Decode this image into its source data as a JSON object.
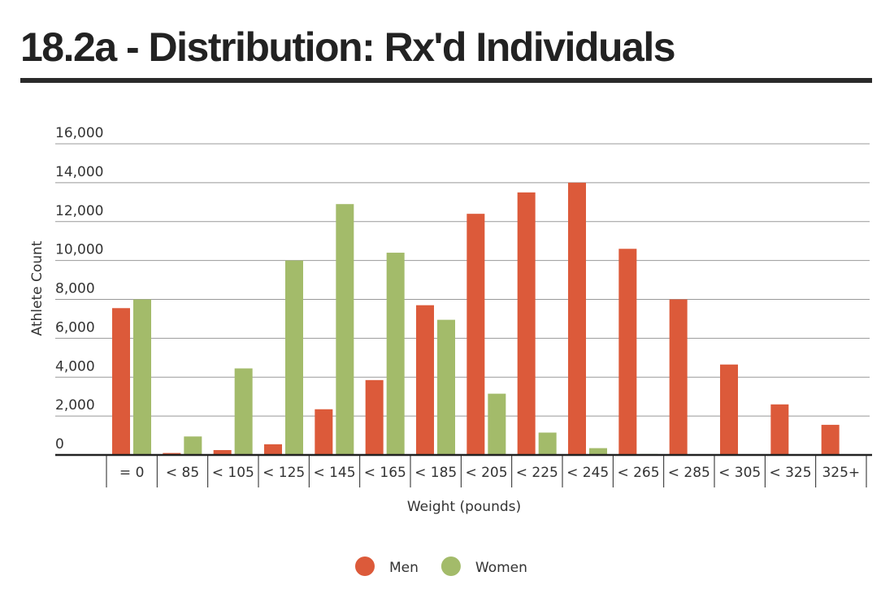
{
  "chart_data": {
    "type": "bar",
    "title": "18.2a - Distribution: Rx'd Individuals",
    "x_label": "Weight (pounds)",
    "y_label": "Athlete Count",
    "categories": [
      "= 0",
      "< 85",
      "< 105",
      "< 125",
      "< 145",
      "< 165",
      "< 185",
      "< 205",
      "< 225",
      "< 245",
      "< 265",
      "< 285",
      "< 305",
      "< 325",
      "325+"
    ],
    "series": [
      {
        "name": "Men",
        "color": "#dc5a3a",
        "values": [
          7550,
          100,
          250,
          550,
          2350,
          3850,
          7700,
          12400,
          13500,
          14000,
          10600,
          8000,
          4650,
          2600,
          1550
        ]
      },
      {
        "name": "Women",
        "color": "#a3bb6a",
        "values": [
          8000,
          950,
          4450,
          10000,
          12900,
          10400,
          6950,
          3150,
          1150,
          350,
          50,
          0,
          0,
          0,
          0
        ]
      }
    ],
    "ylim": [
      0,
      16000
    ],
    "yticks": [
      0,
      {
        "value": 2000,
        "label": "2,000"
      },
      {
        "value": 4000,
        "label": "4,000"
      },
      {
        "value": 6000,
        "label": "6,000"
      },
      {
        "value": 8000,
        "label": "8,000"
      },
      {
        "value": 10000,
        "label": "10,000"
      },
      {
        "value": 12000,
        "label": "12,000"
      },
      {
        "value": 14000,
        "label": "14,000"
      },
      {
        "value": 16000,
        "label": "16,000"
      }
    ],
    "grid": true,
    "legend": "bottom"
  }
}
